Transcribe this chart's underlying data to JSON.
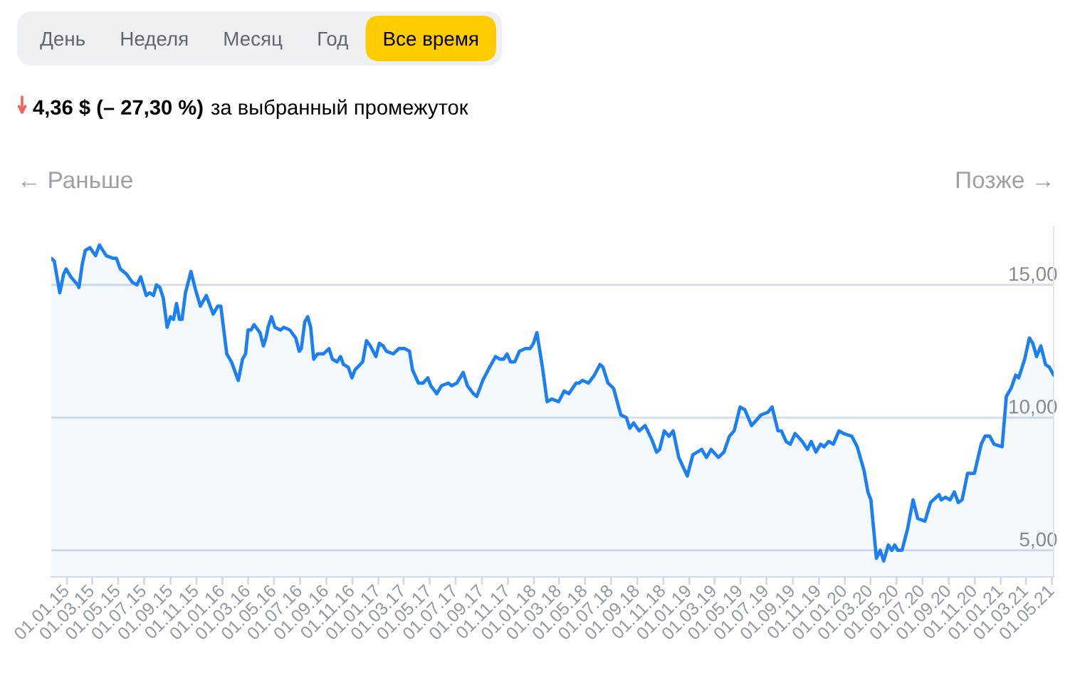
{
  "chart_data": {
    "type": "area",
    "title": "4,36 $ (– 27,30 %)",
    "subtitle": "за выбранный промежуток",
    "annotations": [
      "День",
      "Неделя",
      "Месяц",
      "Год",
      "Все время",
      "← Раньше",
      "Позже →"
    ],
    "x": [
      "2014-11-25",
      "2014-12-02",
      "2014-12-15",
      "2014-12-24",
      "2014-12-30",
      "2015-01-10",
      "2015-01-26",
      "2015-01-29",
      "2015-02-06",
      "2015-02-13",
      "2015-02-24",
      "2015-03-09",
      "2015-03-18",
      "2015-04-03",
      "2015-04-19",
      "2015-04-27",
      "2015-05-06",
      "2015-05-21",
      "2015-06-03",
      "2015-06-14",
      "2015-06-23",
      "2015-07-06",
      "2015-07-14",
      "2015-07-23",
      "2015-07-30",
      "2015-08-07",
      "2015-08-15",
      "2015-08-24",
      "2015-09-01",
      "2015-09-08",
      "2015-09-15",
      "2015-09-22",
      "2015-09-28",
      "2015-10-06",
      "2015-10-19",
      "2015-10-30",
      "2015-11-10",
      "2015-11-24",
      "2015-12-10",
      "2015-12-21",
      "2015-12-28",
      "2016-01-11",
      "2016-01-22",
      "2016-02-07",
      "2016-02-17",
      "2016-02-24",
      "2016-03-01",
      "2016-03-08",
      "2016-03-15",
      "2016-03-29",
      "2016-04-06",
      "2016-04-12",
      "2016-04-17",
      "2016-04-25",
      "2016-05-03",
      "2016-05-16",
      "2016-05-24",
      "2016-06-07",
      "2016-06-21",
      "2016-06-29",
      "2016-07-04",
      "2016-07-12",
      "2016-07-19",
      "2016-07-26",
      "2016-08-02",
      "2016-08-11",
      "2016-08-25",
      "2016-09-07",
      "2016-09-15",
      "2016-09-26",
      "2016-10-04",
      "2016-10-11",
      "2016-10-22",
      "2016-10-31",
      "2016-11-07",
      "2016-11-19",
      "2016-11-25",
      "2016-12-04",
      "2016-12-13",
      "2016-12-26",
      "2017-01-03",
      "2017-01-12",
      "2017-01-20",
      "2017-02-05",
      "2017-02-18",
      "2017-03-04",
      "2017-03-15",
      "2017-03-22",
      "2017-04-05",
      "2017-04-16",
      "2017-04-27",
      "2017-05-04",
      "2017-05-18",
      "2017-05-29",
      "2017-06-14",
      "2017-06-22",
      "2017-07-04",
      "2017-07-19",
      "2017-07-29",
      "2017-08-12",
      "2017-08-20",
      "2017-09-03",
      "2017-09-19",
      "2017-10-03",
      "2017-10-13",
      "2017-10-22",
      "2017-10-30",
      "2017-11-07",
      "2017-11-17",
      "2017-11-28",
      "2017-12-12",
      "2017-12-23",
      "2017-12-31",
      "2018-01-08",
      "2018-01-21",
      "2018-02-01",
      "2018-02-12",
      "2018-02-28",
      "2018-03-13",
      "2018-03-24",
      "2018-04-10",
      "2018-04-17",
      "2018-04-25",
      "2018-05-09",
      "2018-05-23",
      "2018-06-05",
      "2018-06-12",
      "2018-06-24",
      "2018-07-07",
      "2018-07-24",
      "2018-08-06",
      "2018-08-14",
      "2018-08-23",
      "2018-09-05",
      "2018-09-19",
      "2018-10-04",
      "2018-10-16",
      "2018-10-23",
      "2018-11-03",
      "2018-11-14",
      "2018-11-24",
      "2018-12-07",
      "2018-12-27",
      "2019-01-09",
      "2019-01-30",
      "2019-02-10",
      "2019-02-21",
      "2019-03-10",
      "2019-03-23",
      "2019-04-05",
      "2019-04-16",
      "2019-04-30",
      "2019-05-11",
      "2019-05-27",
      "2019-06-07",
      "2019-06-18",
      "2019-07-04",
      "2019-07-14",
      "2019-07-28",
      "2019-08-05",
      "2019-08-16",
      "2019-08-26",
      "2019-09-06",
      "2019-09-23",
      "2019-10-05",
      "2019-10-14",
      "2019-10-25",
      "2019-11-05",
      "2019-11-13",
      "2019-11-24",
      "2019-12-05",
      "2019-12-18",
      "2019-12-29",
      "2020-01-17",
      "2020-01-30",
      "2020-02-15",
      "2020-02-24",
      "2020-03-02",
      "2020-03-15",
      "2020-03-24",
      "2020-04-01",
      "2020-04-12",
      "2020-04-20",
      "2020-04-27",
      "2020-05-04",
      "2020-05-14",
      "2020-05-27",
      "2020-06-09",
      "2020-06-20",
      "2020-07-07",
      "2020-07-20",
      "2020-08-09",
      "2020-08-14",
      "2020-08-24",
      "2020-09-04",
      "2020-09-14",
      "2020-09-23",
      "2020-10-02",
      "2020-10-15",
      "2020-10-20",
      "2020-10-31",
      "2020-11-16",
      "2020-11-25",
      "2020-12-06",
      "2020-12-16",
      "2021-01-04",
      "2021-01-14",
      "2021-01-25",
      "2021-02-05",
      "2021-02-12",
      "2021-02-26",
      "2021-03-09",
      "2021-03-17",
      "2021-03-26",
      "2021-04-05",
      "2021-04-16",
      "2021-04-25",
      "2021-05-05"
    ],
    "series": [
      {
        "color": "#1e80f0",
        "values": [
          16.0,
          15.9,
          14.7,
          15.4,
          15.6,
          15.3,
          15.0,
          14.9,
          15.8,
          16.3,
          16.4,
          16.1,
          16.5,
          16.1,
          16.0,
          16.0,
          15.6,
          15.4,
          15.1,
          15.0,
          15.3,
          14.6,
          14.7,
          14.6,
          15.0,
          14.9,
          14.5,
          13.4,
          13.8,
          13.7,
          14.3,
          13.7,
          13.7,
          14.7,
          15.5,
          14.8,
          14.2,
          14.6,
          13.9,
          14.2,
          14.2,
          12.4,
          12.1,
          11.4,
          12.2,
          12.4,
          13.3,
          13.3,
          13.5,
          13.2,
          12.7,
          13.0,
          13.4,
          13.8,
          13.4,
          13.3,
          13.4,
          13.3,
          13.0,
          12.5,
          12.6,
          13.6,
          13.8,
          13.4,
          12.2,
          12.4,
          12.4,
          12.6,
          12.2,
          12.1,
          12.3,
          12.0,
          11.9,
          11.5,
          11.8,
          12.0,
          12.1,
          12.9,
          12.7,
          12.3,
          12.8,
          12.7,
          12.5,
          12.4,
          12.6,
          12.6,
          12.5,
          11.8,
          11.3,
          11.3,
          11.5,
          11.2,
          10.9,
          11.2,
          11.3,
          11.2,
          11.3,
          11.7,
          11.2,
          10.9,
          10.8,
          11.4,
          11.9,
          12.3,
          12.2,
          12.2,
          12.4,
          12.1,
          12.1,
          12.5,
          12.6,
          12.6,
          12.8,
          13.2,
          11.9,
          10.6,
          10.7,
          10.6,
          11.0,
          10.9,
          11.3,
          11.3,
          11.4,
          11.3,
          11.6,
          12.0,
          11.9,
          11.3,
          11.1,
          10.1,
          10.0,
          9.6,
          9.8,
          9.5,
          9.7,
          9.2,
          8.7,
          8.8,
          9.5,
          9.3,
          9.5,
          8.5,
          7.8,
          8.6,
          8.8,
          8.5,
          8.8,
          8.5,
          8.7,
          9.3,
          9.5,
          10.4,
          10.3,
          9.7,
          9.9,
          10.1,
          10.2,
          10.4,
          9.5,
          9.5,
          9.1,
          9.0,
          9.4,
          9.1,
          8.8,
          9.1,
          8.7,
          9.0,
          8.9,
          9.1,
          9.0,
          9.5,
          9.4,
          9.3,
          8.9,
          8.0,
          7.2,
          6.9,
          4.7,
          5.0,
          4.6,
          5.2,
          5.0,
          5.2,
          5.0,
          5.0,
          5.8,
          6.9,
          6.2,
          6.1,
          6.8,
          7.1,
          6.9,
          7.0,
          6.9,
          7.2,
          6.8,
          6.9,
          7.9,
          7.9,
          7.9,
          9.0,
          9.3,
          9.3,
          9.0,
          8.9,
          10.8,
          11.1,
          11.6,
          11.5,
          12.2,
          13.0,
          12.8,
          12.3,
          12.7,
          12.0,
          11.9,
          11.6
        ]
      }
    ],
    "xlim": [
      "2014-11-25",
      "2021-05-05"
    ],
    "xticks": [
      {
        "value": "2015-01-01",
        "label": "01.01.15"
      },
      {
        "value": "2015-03-01",
        "label": "01.03.15"
      },
      {
        "value": "2015-05-01",
        "label": "01.05.15"
      },
      {
        "value": "2015-07-01",
        "label": "01.07.15"
      },
      {
        "value": "2015-09-01",
        "label": "01.09.15"
      },
      {
        "value": "2015-11-01",
        "label": "01.11.15"
      },
      {
        "value": "2016-01-01",
        "label": "01.01.16"
      },
      {
        "value": "2016-03-01",
        "label": "01.03.16"
      },
      {
        "value": "2016-05-01",
        "label": "01.05.16"
      },
      {
        "value": "2016-07-01",
        "label": "01.07.16"
      },
      {
        "value": "2016-09-01",
        "label": "01.09.16"
      },
      {
        "value": "2016-11-01",
        "label": "01.11.16"
      },
      {
        "value": "2017-01-01",
        "label": "01.01.17"
      },
      {
        "value": "2017-03-01",
        "label": "01.03.17"
      },
      {
        "value": "2017-05-01",
        "label": "01.05.17"
      },
      {
        "value": "2017-07-01",
        "label": "01.07.17"
      },
      {
        "value": "2017-09-01",
        "label": "01.09.17"
      },
      {
        "value": "2017-11-01",
        "label": "01.11.17"
      },
      {
        "value": "2018-01-01",
        "label": "01.01.18"
      },
      {
        "value": "2018-03-01",
        "label": "01.03.18"
      },
      {
        "value": "2018-05-01",
        "label": "01.05.18"
      },
      {
        "value": "2018-07-01",
        "label": "01.07.18"
      },
      {
        "value": "2018-09-01",
        "label": "01.09.18"
      },
      {
        "value": "2018-11-01",
        "label": "01.11.18"
      },
      {
        "value": "2019-01-01",
        "label": "01.01.19"
      },
      {
        "value": "2019-03-01",
        "label": "01.03.19"
      },
      {
        "value": "2019-05-01",
        "label": "01.05.19"
      },
      {
        "value": "2019-07-01",
        "label": "01.07.19"
      },
      {
        "value": "2019-09-01",
        "label": "01.09.19"
      },
      {
        "value": "2019-11-01",
        "label": "01.11.19"
      },
      {
        "value": "2020-01-01",
        "label": "01.01.20"
      },
      {
        "value": "2020-03-01",
        "label": "01.03.20"
      },
      {
        "value": "2020-05-01",
        "label": "01.05.20"
      },
      {
        "value": "2020-07-01",
        "label": "01.07.20"
      },
      {
        "value": "2020-09-01",
        "label": "01.09.20"
      },
      {
        "value": "2020-11-01",
        "label": "01.11.20"
      },
      {
        "value": "2021-01-01",
        "label": "01.01.21"
      },
      {
        "value": "2021-03-01",
        "label": "01.03.21"
      },
      {
        "value": "2021-05-01",
        "label": "01.05.21"
      }
    ],
    "ylim": [
      4,
      17.2
    ],
    "yticks": [
      {
        "value": 5,
        "label": "5,00"
      },
      {
        "value": 10,
        "label": "10,00"
      },
      {
        "value": 15,
        "label": "15,00"
      }
    ],
    "grid": "y"
  }
}
